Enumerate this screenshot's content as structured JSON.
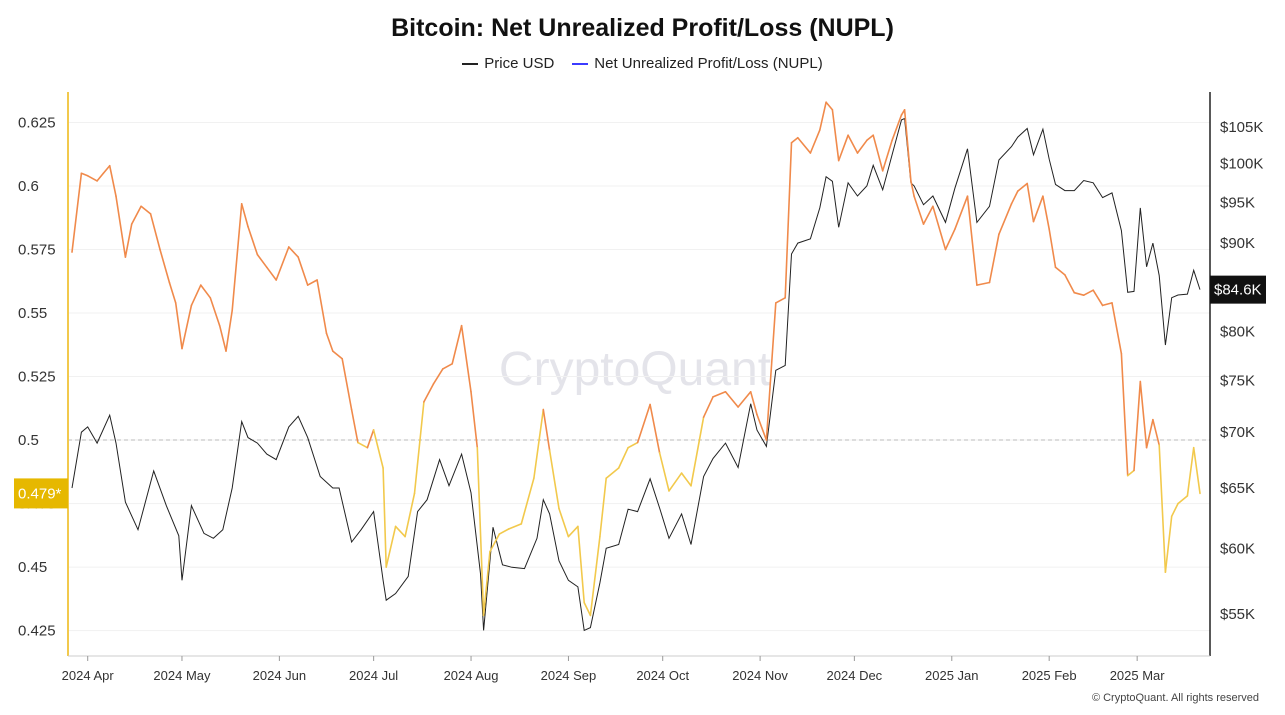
{
  "title": "Bitcoin: Net Unrealized Profit/Loss (NUPL)",
  "legend": [
    {
      "label": "Price USD",
      "color": "#222222"
    },
    {
      "label": "Net Unrealized Profit/Loss (NUPL)",
      "color": "#3b3bff"
    }
  ],
  "footer": "© CryptoQuant. All rights reserved",
  "watermark": "CryptoQuant",
  "colors": {
    "price": "#222222",
    "nupl_high": "#f08a4b",
    "nupl_low": "#f2c94c",
    "left_axis": "#f2c94c",
    "threshold_line": "#bbbbbb",
    "left_badge_bg": "#e6b800",
    "right_badge_bg": "#111111"
  },
  "chart_data": {
    "type": "line",
    "x_start": "2024-03-27",
    "x_end": "2025-03-21",
    "x_ticks": [
      "2024 Apr",
      "2024 May",
      "2024 Jun",
      "2024 Jul",
      "2024 Aug",
      "2024 Sep",
      "2024 Oct",
      "2024 Nov",
      "2024 Dec",
      "2025 Jan",
      "2025 Feb",
      "2025 Mar"
    ],
    "left_axis": {
      "range": [
        0.415,
        0.637
      ],
      "ticks": [
        "0.625",
        "0.6",
        "0.575",
        "0.55",
        "0.525",
        "0.5",
        "0.475",
        "0.45",
        "0.425"
      ],
      "current_label": "0.479*",
      "reference_line": 0.5
    },
    "right_axis": {
      "scale": "log",
      "range": [
        52000,
        110000
      ],
      "ticks": [
        "$105K",
        "$100K",
        "$95K",
        "$90K",
        "$85K",
        "$80K",
        "$75K",
        "$70K",
        "$65K",
        "$60K",
        "$55K"
      ],
      "current_label": "$84.6K"
    },
    "series": [
      {
        "name": "Price USD",
        "axis": "right",
        "points": [
          [
            "2024-03-27",
            65000
          ],
          [
            "2024-03-30",
            70000
          ],
          [
            "2024-04-01",
            70500
          ],
          [
            "2024-04-04",
            69000
          ],
          [
            "2024-04-08",
            71600
          ],
          [
            "2024-04-10",
            69000
          ],
          [
            "2024-04-13",
            63800
          ],
          [
            "2024-04-17",
            61500
          ],
          [
            "2024-04-22",
            66500
          ],
          [
            "2024-04-26",
            63500
          ],
          [
            "2024-04-30",
            61000
          ],
          [
            "2024-05-01",
            57500
          ],
          [
            "2024-05-04",
            63500
          ],
          [
            "2024-05-08",
            61200
          ],
          [
            "2024-05-11",
            60800
          ],
          [
            "2024-05-14",
            61500
          ],
          [
            "2024-05-17",
            65000
          ],
          [
            "2024-05-20",
            71000
          ],
          [
            "2024-05-22",
            69500
          ],
          [
            "2024-05-25",
            69000
          ],
          [
            "2024-05-28",
            68000
          ],
          [
            "2024-05-31",
            67500
          ],
          [
            "2024-06-04",
            70500
          ],
          [
            "2024-06-07",
            71500
          ],
          [
            "2024-06-10",
            69500
          ],
          [
            "2024-06-14",
            66000
          ],
          [
            "2024-06-18",
            65000
          ],
          [
            "2024-06-20",
            65000
          ],
          [
            "2024-06-24",
            60500
          ],
          [
            "2024-06-27",
            61500
          ],
          [
            "2024-07-01",
            63000
          ],
          [
            "2024-07-04",
            57500
          ],
          [
            "2024-07-05",
            56000
          ],
          [
            "2024-07-08",
            56500
          ],
          [
            "2024-07-12",
            57800
          ],
          [
            "2024-07-15",
            63000
          ],
          [
            "2024-07-18",
            64000
          ],
          [
            "2024-07-22",
            67500
          ],
          [
            "2024-07-25",
            65200
          ],
          [
            "2024-07-29",
            68000
          ],
          [
            "2024-08-01",
            64600
          ],
          [
            "2024-08-04",
            58000
          ],
          [
            "2024-08-05",
            53800
          ],
          [
            "2024-08-08",
            61700
          ],
          [
            "2024-08-11",
            58700
          ],
          [
            "2024-08-14",
            58500
          ],
          [
            "2024-08-18",
            58400
          ],
          [
            "2024-08-22",
            60800
          ],
          [
            "2024-08-24",
            64000
          ],
          [
            "2024-08-26",
            62800
          ],
          [
            "2024-08-29",
            59000
          ],
          [
            "2024-09-01",
            57500
          ],
          [
            "2024-09-04",
            57000
          ],
          [
            "2024-09-06",
            53800
          ],
          [
            "2024-09-08",
            54000
          ],
          [
            "2024-09-11",
            57300
          ],
          [
            "2024-09-13",
            60000
          ],
          [
            "2024-09-17",
            60300
          ],
          [
            "2024-09-20",
            63200
          ],
          [
            "2024-09-23",
            63000
          ],
          [
            "2024-09-27",
            65800
          ],
          [
            "2024-09-30",
            63300
          ],
          [
            "2024-10-03",
            60800
          ],
          [
            "2024-10-07",
            62800
          ],
          [
            "2024-10-10",
            60300
          ],
          [
            "2024-10-14",
            66000
          ],
          [
            "2024-10-17",
            67600
          ],
          [
            "2024-10-21",
            69000
          ],
          [
            "2024-10-25",
            66800
          ],
          [
            "2024-10-29",
            72700
          ],
          [
            "2024-10-31",
            70200
          ],
          [
            "2024-11-03",
            68700
          ],
          [
            "2024-11-06",
            76000
          ],
          [
            "2024-11-09",
            76500
          ],
          [
            "2024-11-11",
            88700
          ],
          [
            "2024-11-13",
            90000
          ],
          [
            "2024-11-17",
            90500
          ],
          [
            "2024-11-20",
            94300
          ],
          [
            "2024-11-22",
            98300
          ],
          [
            "2024-11-24",
            97700
          ],
          [
            "2024-11-26",
            91900
          ],
          [
            "2024-11-29",
            97500
          ],
          [
            "2024-12-02",
            95800
          ],
          [
            "2024-12-05",
            97100
          ],
          [
            "2024-12-07",
            99800
          ],
          [
            "2024-12-10",
            96600
          ],
          [
            "2024-12-13",
            101200
          ],
          [
            "2024-12-16",
            106000
          ],
          [
            "2024-12-17",
            106200
          ],
          [
            "2024-12-19",
            97500
          ],
          [
            "2024-12-20",
            97100
          ],
          [
            "2024-12-23",
            94700
          ],
          [
            "2024-12-26",
            95800
          ],
          [
            "2024-12-30",
            92500
          ],
          [
            "2025-01-02",
            96800
          ],
          [
            "2025-01-06",
            102000
          ],
          [
            "2025-01-09",
            92500
          ],
          [
            "2025-01-13",
            94500
          ],
          [
            "2025-01-16",
            100500
          ],
          [
            "2025-01-20",
            102300
          ],
          [
            "2025-01-22",
            103600
          ],
          [
            "2025-01-25",
            104800
          ],
          [
            "2025-01-27",
            101200
          ],
          [
            "2025-01-30",
            104700
          ],
          [
            "2025-02-01",
            100600
          ],
          [
            "2025-02-03",
            97300
          ],
          [
            "2025-02-06",
            96500
          ],
          [
            "2025-02-09",
            96500
          ],
          [
            "2025-02-12",
            97800
          ],
          [
            "2025-02-15",
            97500
          ],
          [
            "2025-02-18",
            95600
          ],
          [
            "2025-02-21",
            96200
          ],
          [
            "2025-02-24",
            91500
          ],
          [
            "2025-02-26",
            84300
          ],
          [
            "2025-02-28",
            84400
          ],
          [
            "2025-03-02",
            94300
          ],
          [
            "2025-03-04",
            87200
          ],
          [
            "2025-03-06",
            90000
          ],
          [
            "2025-03-08",
            86200
          ],
          [
            "2025-03-10",
            78600
          ],
          [
            "2025-03-12",
            83700
          ],
          [
            "2025-03-14",
            84000
          ],
          [
            "2025-03-17",
            84100
          ],
          [
            "2025-03-19",
            86800
          ],
          [
            "2025-03-21",
            84600
          ]
        ]
      },
      {
        "name": "Net Unrealized Profit/Loss (NUPL)",
        "axis": "left",
        "points": [
          [
            "2024-03-27",
            0.574
          ],
          [
            "2024-03-30",
            0.605
          ],
          [
            "2024-04-01",
            0.604
          ],
          [
            "2024-04-04",
            0.602
          ],
          [
            "2024-04-06",
            0.605
          ],
          [
            "2024-04-08",
            0.608
          ],
          [
            "2024-04-10",
            0.596
          ],
          [
            "2024-04-13",
            0.572
          ],
          [
            "2024-04-15",
            0.585
          ],
          [
            "2024-04-18",
            0.592
          ],
          [
            "2024-04-21",
            0.589
          ],
          [
            "2024-04-24",
            0.575
          ],
          [
            "2024-04-27",
            0.562
          ],
          [
            "2024-04-29",
            0.554
          ],
          [
            "2024-05-01",
            0.536
          ],
          [
            "2024-05-04",
            0.553
          ],
          [
            "2024-05-07",
            0.561
          ],
          [
            "2024-05-10",
            0.556
          ],
          [
            "2024-05-13",
            0.545
          ],
          [
            "2024-05-15",
            0.535
          ],
          [
            "2024-05-17",
            0.551
          ],
          [
            "2024-05-20",
            0.593
          ],
          [
            "2024-05-22",
            0.584
          ],
          [
            "2024-05-25",
            0.573
          ],
          [
            "2024-05-28",
            0.568
          ],
          [
            "2024-05-31",
            0.563
          ],
          [
            "2024-06-04",
            0.576
          ],
          [
            "2024-06-07",
            0.572
          ],
          [
            "2024-06-10",
            0.561
          ],
          [
            "2024-06-13",
            0.563
          ],
          [
            "2024-06-16",
            0.542
          ],
          [
            "2024-06-18",
            0.535
          ],
          [
            "2024-06-21",
            0.532
          ],
          [
            "2024-06-24",
            0.512
          ],
          [
            "2024-06-26",
            0.499
          ],
          [
            "2024-06-29",
            0.497
          ],
          [
            "2024-07-01",
            0.504
          ],
          [
            "2024-07-04",
            0.489
          ],
          [
            "2024-07-05",
            0.45
          ],
          [
            "2024-07-08",
            0.466
          ],
          [
            "2024-07-11",
            0.462
          ],
          [
            "2024-07-14",
            0.479
          ],
          [
            "2024-07-17",
            0.515
          ],
          [
            "2024-07-20",
            0.522
          ],
          [
            "2024-07-23",
            0.528
          ],
          [
            "2024-07-26",
            0.53
          ],
          [
            "2024-07-29",
            0.545
          ],
          [
            "2024-08-01",
            0.519
          ],
          [
            "2024-08-03",
            0.497
          ],
          [
            "2024-08-05",
            0.431
          ],
          [
            "2024-08-07",
            0.456
          ],
          [
            "2024-08-10",
            0.463
          ],
          [
            "2024-08-13",
            0.465
          ],
          [
            "2024-08-17",
            0.467
          ],
          [
            "2024-08-21",
            0.485
          ],
          [
            "2024-08-24",
            0.512
          ],
          [
            "2024-08-26",
            0.496
          ],
          [
            "2024-08-29",
            0.473
          ],
          [
            "2024-09-01",
            0.462
          ],
          [
            "2024-09-04",
            0.466
          ],
          [
            "2024-09-06",
            0.436
          ],
          [
            "2024-09-08",
            0.431
          ],
          [
            "2024-09-11",
            0.462
          ],
          [
            "2024-09-13",
            0.485
          ],
          [
            "2024-09-17",
            0.489
          ],
          [
            "2024-09-20",
            0.497
          ],
          [
            "2024-09-23",
            0.499
          ],
          [
            "2024-09-27",
            0.514
          ],
          [
            "2024-09-30",
            0.495
          ],
          [
            "2024-10-03",
            0.48
          ],
          [
            "2024-10-07",
            0.487
          ],
          [
            "2024-10-10",
            0.482
          ],
          [
            "2024-10-14",
            0.509
          ],
          [
            "2024-10-17",
            0.517
          ],
          [
            "2024-10-21",
            0.519
          ],
          [
            "2024-10-25",
            0.513
          ],
          [
            "2024-10-29",
            0.519
          ],
          [
            "2024-10-31",
            0.51
          ],
          [
            "2024-11-03",
            0.5
          ],
          [
            "2024-11-06",
            0.554
          ],
          [
            "2024-11-09",
            0.556
          ],
          [
            "2024-11-11",
            0.617
          ],
          [
            "2024-11-13",
            0.619
          ],
          [
            "2024-11-17",
            0.613
          ],
          [
            "2024-11-20",
            0.622
          ],
          [
            "2024-11-22",
            0.633
          ],
          [
            "2024-11-24",
            0.63
          ],
          [
            "2024-11-26",
            0.61
          ],
          [
            "2024-11-29",
            0.62
          ],
          [
            "2024-12-02",
            0.613
          ],
          [
            "2024-12-05",
            0.618
          ],
          [
            "2024-12-07",
            0.62
          ],
          [
            "2024-12-10",
            0.606
          ],
          [
            "2024-12-13",
            0.618
          ],
          [
            "2024-12-16",
            0.628
          ],
          [
            "2024-12-17",
            0.63
          ],
          [
            "2024-12-19",
            0.602
          ],
          [
            "2024-12-20",
            0.596
          ],
          [
            "2024-12-23",
            0.585
          ],
          [
            "2024-12-26",
            0.592
          ],
          [
            "2024-12-30",
            0.575
          ],
          [
            "2025-01-02",
            0.583
          ],
          [
            "2025-01-06",
            0.596
          ],
          [
            "2025-01-09",
            0.561
          ],
          [
            "2025-01-13",
            0.562
          ],
          [
            "2025-01-16",
            0.581
          ],
          [
            "2025-01-20",
            0.593
          ],
          [
            "2025-01-22",
            0.598
          ],
          [
            "2025-01-25",
            0.601
          ],
          [
            "2025-01-27",
            0.586
          ],
          [
            "2025-01-30",
            0.596
          ],
          [
            "2025-02-01",
            0.583
          ],
          [
            "2025-02-03",
            0.568
          ],
          [
            "2025-02-06",
            0.565
          ],
          [
            "2025-02-09",
            0.558
          ],
          [
            "2025-02-12",
            0.557
          ],
          [
            "2025-02-15",
            0.559
          ],
          [
            "2025-02-18",
            0.553
          ],
          [
            "2025-02-21",
            0.554
          ],
          [
            "2025-02-24",
            0.534
          ],
          [
            "2025-02-26",
            0.486
          ],
          [
            "2025-02-28",
            0.488
          ],
          [
            "2025-03-02",
            0.523
          ],
          [
            "2025-03-04",
            0.497
          ],
          [
            "2025-03-06",
            0.508
          ],
          [
            "2025-03-08",
            0.498
          ],
          [
            "2025-03-10",
            0.448
          ],
          [
            "2025-03-12",
            0.47
          ],
          [
            "2025-03-14",
            0.475
          ],
          [
            "2025-03-17",
            0.478
          ],
          [
            "2025-03-19",
            0.497
          ],
          [
            "2025-03-21",
            0.479
          ]
        ]
      }
    ]
  }
}
